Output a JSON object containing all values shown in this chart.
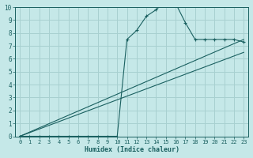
{
  "xlabel": "Humidex (Indice chaleur)",
  "ylabel": "",
  "xlim": [
    -0.5,
    23.5
  ],
  "ylim": [
    0,
    10
  ],
  "xticks": [
    0,
    1,
    2,
    3,
    4,
    5,
    6,
    7,
    8,
    9,
    10,
    11,
    12,
    13,
    14,
    15,
    16,
    17,
    18,
    19,
    20,
    21,
    22,
    23
  ],
  "yticks": [
    0,
    1,
    2,
    3,
    4,
    5,
    6,
    7,
    8,
    9,
    10
  ],
  "bg_color": "#c5e8e8",
  "grid_color": "#a8d0d0",
  "line_color": "#1a6060",
  "curve1_x": [
    0,
    1,
    2,
    3,
    4,
    5,
    6,
    7,
    8,
    9,
    10,
    11,
    12,
    13,
    14,
    15,
    16,
    17,
    18,
    19,
    20,
    21,
    22,
    23
  ],
  "curve1_y": [
    0,
    0,
    0,
    0,
    0,
    0,
    0,
    0,
    0,
    0,
    0,
    7.5,
    8.2,
    9.3,
    9.8,
    10.5,
    10.3,
    8.8,
    7.5,
    7.5,
    7.5,
    7.5,
    7.5,
    7.3
  ],
  "line2_x": [
    0,
    23
  ],
  "line2_y": [
    0,
    7.5
  ],
  "line3_x": [
    0,
    23
  ],
  "line3_y": [
    0,
    6.5
  ]
}
